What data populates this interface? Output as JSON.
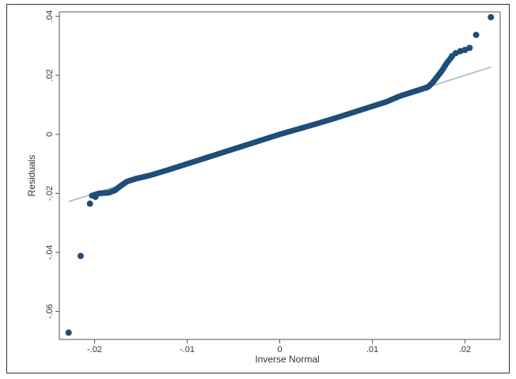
{
  "chart_data": {
    "type": "scatter",
    "title": "",
    "xlabel": "Inverse Normal",
    "ylabel": "Residuals",
    "xlim": [
      -0.0238,
      0.0238
    ],
    "ylim": [
      -0.0695,
      0.0415
    ],
    "x_ticks": [
      {
        "value": -0.02,
        "label": "-.02"
      },
      {
        "value": -0.01,
        "label": "-.01"
      },
      {
        "value": 0,
        "label": "0"
      },
      {
        "value": 0.01,
        "label": ".01"
      },
      {
        "value": 0.02,
        "label": ".02"
      }
    ],
    "y_ticks": [
      {
        "value": -0.06,
        "label": "-.06"
      },
      {
        "value": -0.04,
        "label": "-.04"
      },
      {
        "value": -0.02,
        "label": "-.02"
      },
      {
        "value": 0,
        "label": "0"
      },
      {
        "value": 0.02,
        "label": ".02"
      },
      {
        "value": 0.04,
        "label": ".04"
      }
    ],
    "grid": false,
    "reference_line": {
      "x": [
        -0.0228,
        0.0228
      ],
      "y": [
        -0.0228,
        0.0228
      ],
      "color": "#a8c3bd"
    },
    "point_color": "#1f4e79",
    "dense_band": [
      [
        -0.0203,
        -0.0208
      ],
      [
        -0.0195,
        -0.02
      ],
      [
        -0.0185,
        -0.0198
      ],
      [
        -0.0178,
        -0.019
      ],
      [
        -0.0172,
        -0.0175
      ],
      [
        -0.0165,
        -0.016
      ],
      [
        -0.0155,
        -0.015
      ],
      [
        -0.014,
        -0.0139
      ],
      [
        -0.012,
        -0.012
      ],
      [
        -0.01,
        -0.01
      ],
      [
        -0.008,
        -0.008
      ],
      [
        -0.006,
        -0.006
      ],
      [
        -0.004,
        -0.004
      ],
      [
        -0.002,
        -0.002
      ],
      [
        0.0,
        0.0
      ],
      [
        0.002,
        0.0018
      ],
      [
        0.004,
        0.0036
      ],
      [
        0.006,
        0.0055
      ],
      [
        0.008,
        0.0075
      ],
      [
        0.01,
        0.0095
      ],
      [
        0.0115,
        0.011
      ],
      [
        0.013,
        0.013
      ],
      [
        0.0145,
        0.0145
      ],
      [
        0.0155,
        0.0155
      ],
      [
        0.016,
        0.016
      ],
      [
        0.0165,
        0.0175
      ],
      [
        0.017,
        0.0195
      ],
      [
        0.0175,
        0.0215
      ],
      [
        0.018,
        0.024
      ],
      [
        0.0185,
        0.026
      ]
    ],
    "points": [
      {
        "x": -0.0228,
        "y": -0.0672
      },
      {
        "x": -0.0215,
        "y": -0.0412
      },
      {
        "x": -0.0205,
        "y": -0.0235
      },
      {
        "x": -0.0199,
        "y": -0.0212
      },
      {
        "x": 0.0186,
        "y": 0.0265
      },
      {
        "x": 0.019,
        "y": 0.0275
      },
      {
        "x": 0.0195,
        "y": 0.0282
      },
      {
        "x": 0.02,
        "y": 0.0286
      },
      {
        "x": 0.0205,
        "y": 0.0293
      },
      {
        "x": 0.0212,
        "y": 0.0337
      },
      {
        "x": 0.0228,
        "y": 0.0397
      }
    ]
  }
}
